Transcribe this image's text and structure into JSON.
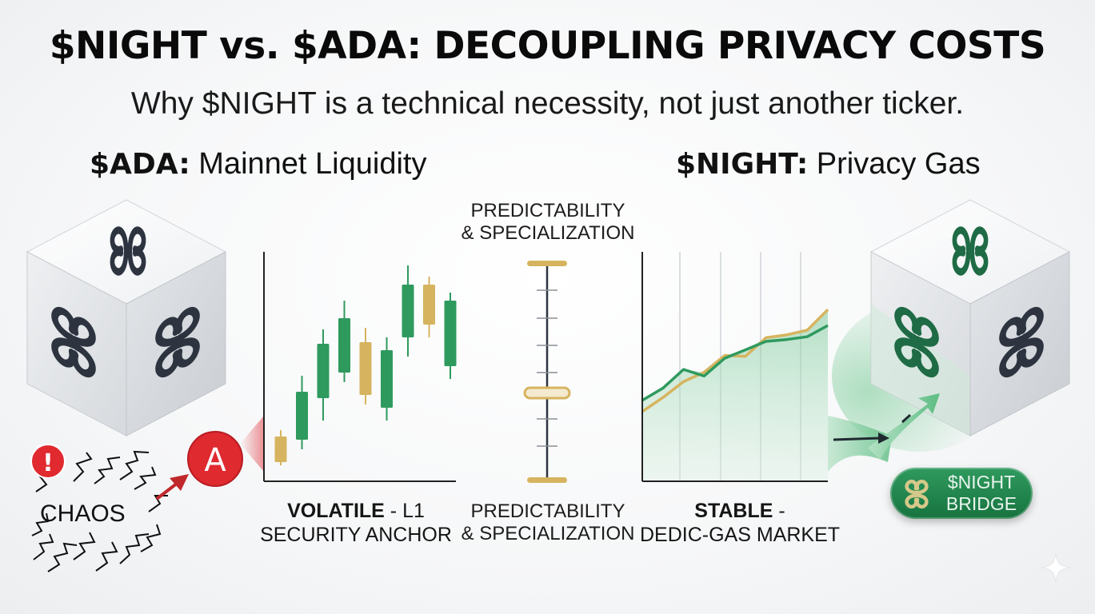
{
  "header": {
    "title": "$NIGHT vs. $ADA: DECOUPLING PRIVACY COSTS",
    "subtitle": "Why $NIGHT is a technical necessity, not just another ticker."
  },
  "ada": {
    "ticker": "$ADA:",
    "label": "Mainnet Liquidity",
    "caption_bold": "VOLATILE",
    "caption_rest": " - L1",
    "caption_line2": "SECURITY ANCHOR",
    "badge_letter": "A",
    "chaos_label": "CHAOS",
    "alert_symbol": "!",
    "cube_icon": "infinity-knot-icon",
    "cube_color": "#2d3440"
  },
  "night": {
    "ticker": "$NIGHT:",
    "label": "Privacy Gas",
    "caption_bold": "STABLE",
    "caption_rest": " -",
    "caption_line2": "DEDIC-GAS MARKET",
    "bridge_line1": "$NIGHT",
    "bridge_line2": "BRIDGE",
    "cube_icon": "infinity-knot-icon",
    "cube_color": "#1e6b45"
  },
  "middle": {
    "top_line1": "PREDICTABILITY",
    "top_line2": "& SPECIALIZATION",
    "bottom_line1": "PREDICTABILITY",
    "bottom_line2": "& SPECIALIZATION"
  },
  "colors": {
    "green": "#2f9a5e",
    "gold": "#d6b45f",
    "red": "#d9262c",
    "dark": "#2d3440"
  },
  "chart_data": [
    {
      "type": "candlestick",
      "title": "",
      "candles": [
        {
          "open": 2,
          "close": 18,
          "high": 22,
          "low": 0,
          "color": "gold"
        },
        {
          "open": 16,
          "close": 46,
          "high": 56,
          "low": 10,
          "color": "green"
        },
        {
          "open": 42,
          "close": 76,
          "high": 85,
          "low": 28,
          "color": "green"
        },
        {
          "open": 58,
          "close": 92,
          "high": 103,
          "low": 52,
          "color": "green"
        },
        {
          "open": 77,
          "close": 44,
          "high": 86,
          "low": 38,
          "color": "gold"
        },
        {
          "open": 36,
          "close": 72,
          "high": 80,
          "low": 28,
          "color": "green"
        },
        {
          "open": 80,
          "close": 113,
          "high": 125,
          "low": 68,
          "color": "green"
        },
        {
          "open": 113,
          "close": 88,
          "high": 118,
          "low": 80,
          "color": "gold"
        },
        {
          "open": 103,
          "close": 62,
          "high": 108,
          "low": 54,
          "color": "green"
        }
      ]
    },
    {
      "type": "area",
      "title": "",
      "x": [
        0,
        1,
        2,
        3,
        4,
        5,
        6,
        7,
        8,
        9
      ],
      "series": [
        {
          "values": [
            25,
            38,
            58,
            51,
            70,
            79,
            88,
            90,
            93,
            105
          ],
          "color": "green"
        },
        {
          "values": [
            13,
            28,
            45,
            55,
            73,
            72,
            92,
            95,
            100,
            122
          ],
          "color": "gold"
        }
      ]
    }
  ]
}
